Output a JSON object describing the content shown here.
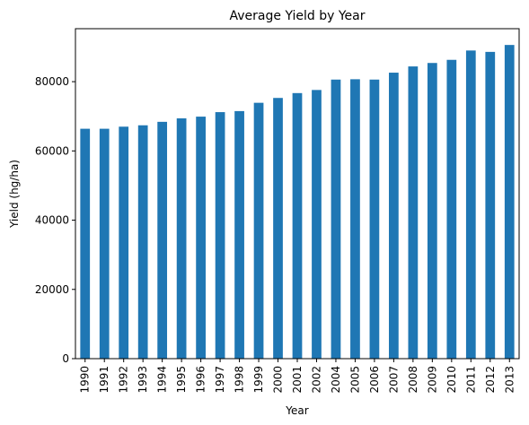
{
  "chart_data": {
    "type": "bar",
    "title": "Average Yield by Year",
    "xlabel": "Year",
    "ylabel": "Yield (hg/ha)",
    "categories": [
      "1990",
      "1991",
      "1992",
      "1993",
      "1994",
      "1995",
      "1996",
      "1997",
      "1998",
      "1999",
      "2000",
      "2001",
      "2002",
      "2004",
      "2005",
      "2006",
      "2007",
      "2008",
      "2009",
      "2010",
      "2011",
      "2012",
      "2013"
    ],
    "values": [
      66400,
      66400,
      67000,
      67400,
      68400,
      69400,
      69900,
      71200,
      71500,
      73900,
      75300,
      76700,
      77600,
      80600,
      80700,
      80600,
      82600,
      84400,
      85400,
      86300,
      89000,
      88600,
      90600
    ],
    "ylim": [
      0,
      95300
    ],
    "yticks": [
      0,
      20000,
      40000,
      60000,
      80000
    ],
    "grid": false,
    "bar_color": "#1f77b4"
  }
}
